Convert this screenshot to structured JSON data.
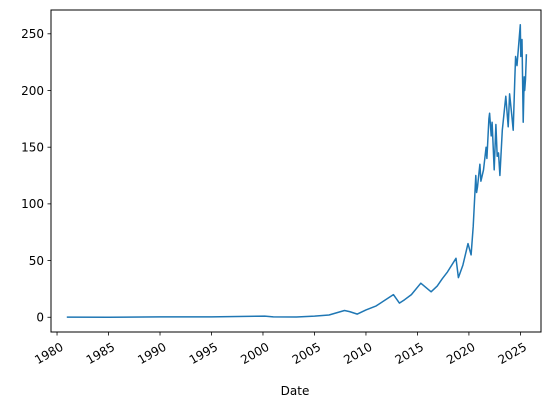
{
  "chart_data": {
    "type": "line",
    "title": "",
    "xlabel": "Date",
    "ylabel": "",
    "xlim": [
      "1979-06-01",
      "2027-01-01"
    ],
    "ylim": [
      -13,
      271
    ],
    "x_ticks": [
      "1980",
      "1985",
      "1990",
      "1995",
      "2000",
      "2005",
      "2010",
      "2015",
      "2020",
      "2025"
    ],
    "y_ticks": [
      0,
      50,
      100,
      150,
      200,
      250
    ],
    "grid": false,
    "legend": "none",
    "colors": {
      "line": "#1f77b4"
    },
    "series": [
      {
        "x": [
          "1980-12-12",
          "1985-01-01",
          "1990-01-01",
          "1995-01-01",
          "2000-03-01",
          "2001-01-01",
          "2003-04-01",
          "2005-01-01",
          "2006-06-01",
          "2007-12-01",
          "2008-06-01",
          "2009-03-01",
          "2010-01-01",
          "2011-01-01",
          "2012-09-01",
          "2013-04-01",
          "2013-10-01",
          "2014-06-01",
          "2015-05-01",
          "2016-05-01",
          "2016-12-01",
          "2017-06-01",
          "2017-12-01",
          "2018-10-01",
          "2018-12-25",
          "2019-06-01",
          "2019-12-01",
          "2020-03-20",
          "2020-06-01",
          "2020-09-01",
          "2020-10-01",
          "2020-11-01",
          "2021-01-25",
          "2021-03-01",
          "2021-06-01",
          "2021-09-01",
          "2021-10-01",
          "2021-12-10",
          "2022-01-03",
          "2022-03-01",
          "2022-04-01",
          "2022-06-15",
          "2022-08-15",
          "2022-10-01",
          "2022-11-15",
          "2023-01-03",
          "2023-04-01",
          "2023-07-31",
          "2023-10-27",
          "2023-12-14",
          "2024-03-01",
          "2024-04-19",
          "2024-06-15",
          "2024-07-15",
          "2024-09-01",
          "2024-12-26",
          "2025-01-15",
          "2025-02-25",
          "2025-04-08",
          "2025-05-15",
          "2025-06-01",
          "2025-07-01",
          "2025-08-01"
        ],
        "values": [
          0.1,
          0.08,
          0.3,
          0.35,
          1.0,
          0.3,
          0.25,
          1.0,
          2.0,
          6.0,
          5.0,
          2.8,
          6.5,
          10.0,
          20.0,
          12.5,
          15.5,
          20.0,
          30.0,
          22.5,
          27.5,
          34.0,
          40.0,
          52.0,
          35.0,
          46.0,
          65.0,
          55.0,
          80.0,
          125.0,
          110.0,
          115.0,
          135.0,
          120.0,
          130.0,
          150.0,
          140.0,
          175.0,
          180.0,
          160.0,
          172.0,
          130.0,
          170.0,
          142.0,
          145.0,
          125.0,
          165.0,
          195.0,
          168.0,
          197.0,
          178.0,
          165.0,
          210.0,
          230.0,
          222.0,
          258.0,
          230.0,
          245.0,
          172.0,
          212.0,
          200.0,
          210.0,
          232.0
        ]
      }
    ]
  }
}
